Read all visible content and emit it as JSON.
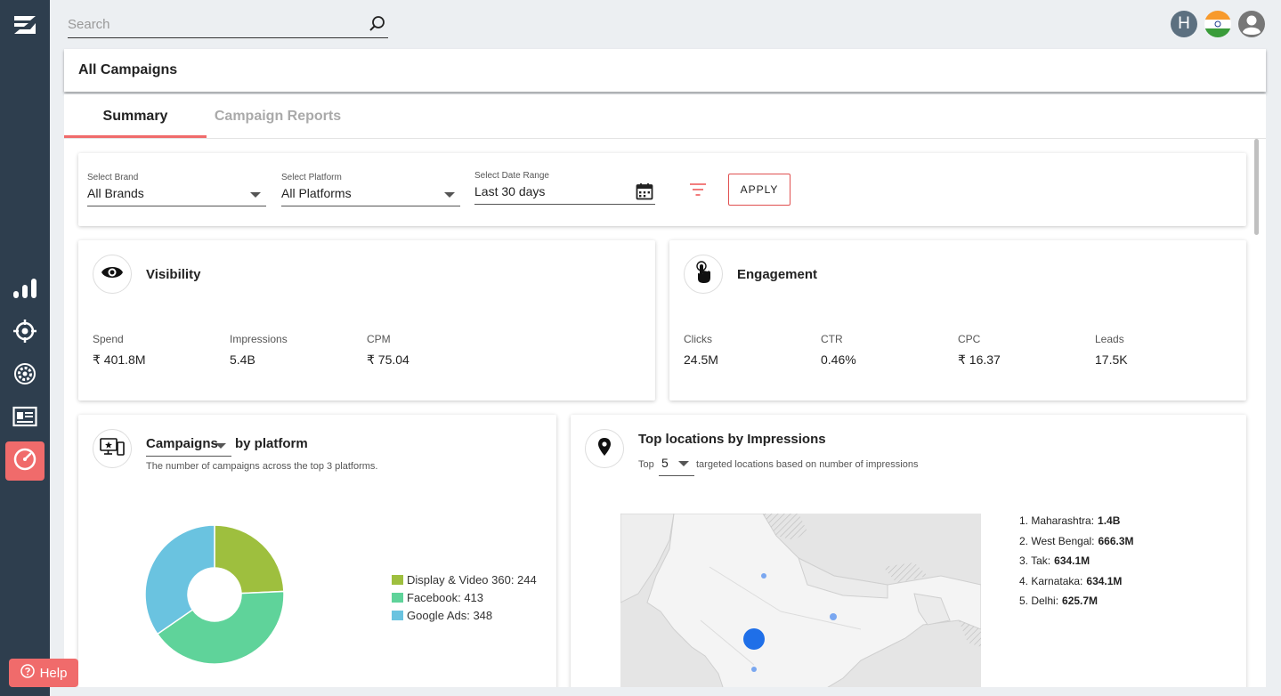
{
  "search": {
    "placeholder": "Search"
  },
  "header": {
    "title": "All Campaigns"
  },
  "tabs": [
    {
      "label": "Summary",
      "active": true
    },
    {
      "label": "Campaign Reports",
      "active": false
    }
  ],
  "filters": {
    "brand": {
      "label": "Select Brand",
      "value": "All Brands"
    },
    "platform": {
      "label": "Select Platform",
      "value": "All Platforms"
    },
    "date_range": {
      "label": "Select Date Range",
      "value": "Last 30 days"
    },
    "apply_label": "APPLY"
  },
  "visibility": {
    "title": "Visibility",
    "metrics": [
      {
        "label": "Spend",
        "value": "₹ 401.8M"
      },
      {
        "label": "Impressions",
        "value": "5.4B"
      },
      {
        "label": "CPM",
        "value": "₹ 75.04"
      }
    ]
  },
  "engagement": {
    "title": "Engagement",
    "metrics": [
      {
        "label": "Clicks",
        "value": "24.5M"
      },
      {
        "label": "CTR",
        "value": "0.46%"
      },
      {
        "label": "CPC",
        "value": "₹ 16.37"
      },
      {
        "label": "Leads",
        "value": "17.5K"
      }
    ]
  },
  "campaigns_card": {
    "selector": "Campaigns",
    "title_suffix": "by platform",
    "description": "The number of campaigns across the top 3 platforms."
  },
  "chart_data": {
    "type": "pie",
    "donut": true,
    "categories": [
      "Display & Video 360",
      "Facebook",
      "Google Ads"
    ],
    "values": [
      244,
      413,
      348
    ],
    "legend_labels": [
      "Display & Video 360: 244",
      "Facebook: 413",
      "Google Ads: 348"
    ],
    "colors": [
      "#9ebf3e",
      "#5fd39a",
      "#6ac3e0"
    ],
    "legend_position": "right"
  },
  "locations_card": {
    "title": "Top locations by Impressions",
    "prefix": "Top",
    "count": "5",
    "suffix": "targeted locations based on number of impressions",
    "items": [
      {
        "name": "1. Maharashtra:",
        "value": "1.4B"
      },
      {
        "name": "2. West Bengal:",
        "value": "666.3M"
      },
      {
        "name": "3. Tak:",
        "value": "634.1M"
      },
      {
        "name": "4. Karnataka:",
        "value": "634.1M"
      },
      {
        "name": "5. Delhi:",
        "value": "625.7M"
      }
    ]
  },
  "help": {
    "label": "Help"
  },
  "user": {
    "initial": "H"
  },
  "colors": {
    "accent": "#f06b6b",
    "sidebar": "#2e3e4e"
  }
}
